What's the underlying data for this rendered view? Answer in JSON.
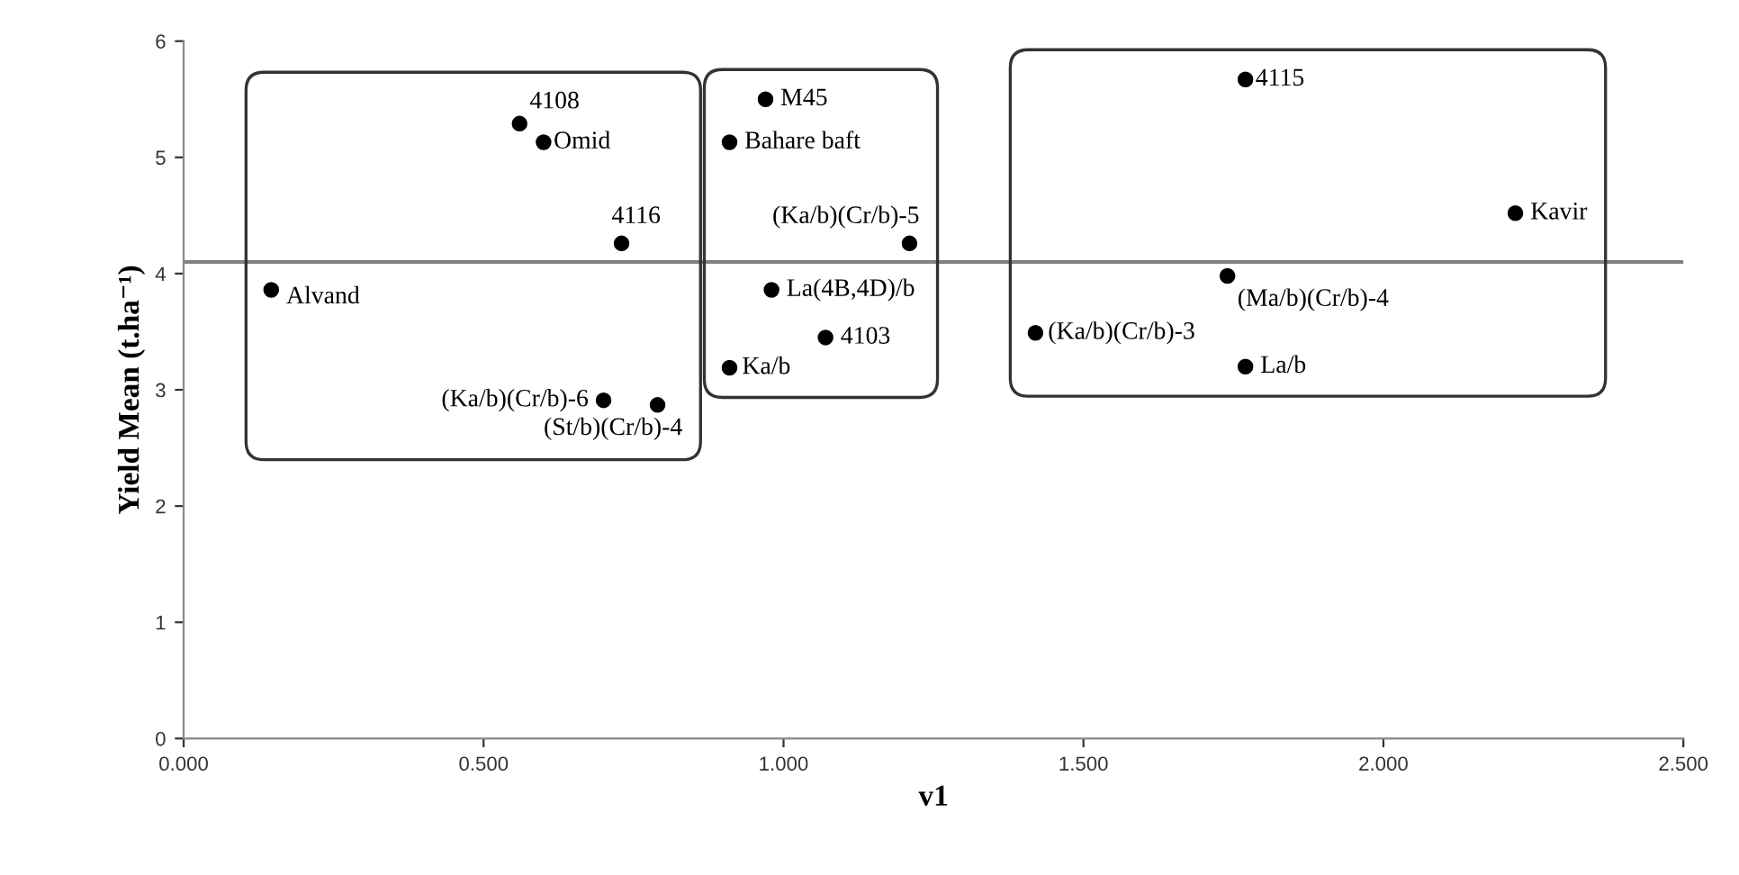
{
  "chart_data": {
    "type": "scatter",
    "xlabel": "v1",
    "ylabel": "Yield Mean (t.ha⁻¹)",
    "xlim": [
      0,
      2.5
    ],
    "ylim": [
      0,
      6
    ],
    "xticks": [
      {
        "value": 0,
        "label": "0.000"
      },
      {
        "value": 0.5,
        "label": "0.500"
      },
      {
        "value": 1,
        "label": "1.000"
      },
      {
        "value": 1.5,
        "label": "1.500"
      },
      {
        "value": 2,
        "label": "2.000"
      },
      {
        "value": 2.5,
        "label": "2.500"
      }
    ],
    "yticks": [
      0,
      1,
      2,
      3,
      4,
      5,
      6
    ],
    "grid": false,
    "marker": "circle",
    "series": [
      {
        "color": "#000000",
        "x": [
          0.56,
          0.6,
          0.73,
          0.146,
          0.7,
          0.79
        ],
        "values": [
          5.29,
          5.13,
          4.26,
          3.86,
          2.91,
          2.87
        ]
      },
      {
        "color": "#000000",
        "x": [
          0.97,
          0.91,
          1.21,
          0.98,
          1.07,
          0.91
        ],
        "values": [
          5.5,
          5.13,
          4.26,
          3.86,
          3.45,
          3.19
        ]
      },
      {
        "color": "#000000",
        "x": [
          1.77,
          2.22,
          1.74,
          1.42,
          1.77
        ],
        "values": [
          5.67,
          4.52,
          3.98,
          3.49,
          3.2
        ]
      }
    ],
    "ref_lines": [
      {
        "axis": "y",
        "value": 4.1,
        "color": "#808080",
        "line_style": "solid"
      }
    ],
    "annotations": [
      {
        "text": "4108",
        "x": 0.56,
        "y": 5.29
      },
      {
        "text": "Omid",
        "x": 0.6,
        "y": 5.13
      },
      {
        "text": "4116",
        "x": 0.73,
        "y": 4.26
      },
      {
        "text": "Alvand",
        "x": 0.146,
        "y": 3.86
      },
      {
        "text": "(Ka/b)(Cr/b)-6",
        "x": 0.7,
        "y": 2.91
      },
      {
        "text": "(St/b)(Cr/b)-4",
        "x": 0.79,
        "y": 2.87
      },
      {
        "text": "M45",
        "x": 0.97,
        "y": 5.5
      },
      {
        "text": "Bahare baft",
        "x": 0.91,
        "y": 5.13
      },
      {
        "text": "(Ka/b)(Cr/b)-5",
        "x": 1.21,
        "y": 4.26
      },
      {
        "text": "La(4B,4D)/b",
        "x": 0.98,
        "y": 3.86
      },
      {
        "text": "4103",
        "x": 1.07,
        "y": 3.45
      },
      {
        "text": "Ka/b",
        "x": 0.91,
        "y": 3.19
      },
      {
        "text": "4115",
        "x": 1.77,
        "y": 5.67
      },
      {
        "text": "Kavir",
        "x": 2.22,
        "y": 4.52
      },
      {
        "text": "(Ma/b)(Cr/b)-4",
        "x": 1.74,
        "y": 3.98
      },
      {
        "text": "(Ka/b)(Cr/b)-3",
        "x": 1.42,
        "y": 3.49
      },
      {
        "text": "La/b",
        "x": 1.77,
        "y": 3.2
      }
    ]
  }
}
